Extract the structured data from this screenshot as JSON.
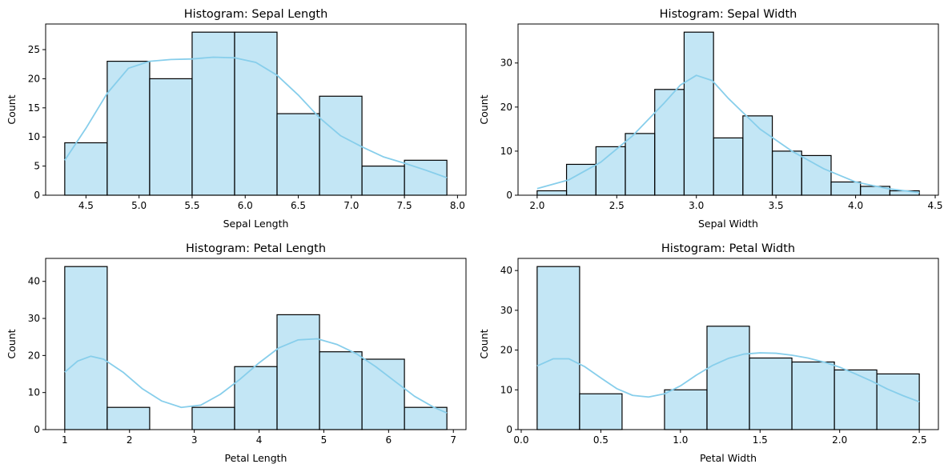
{
  "colors": {
    "bar_fill": "#87CEEB",
    "bar_edge": "#000000",
    "kde_line": "#87CEEB"
  },
  "chart_data": [
    {
      "type": "bar",
      "title": "Histogram: Sepal Length",
      "xlabel": "Sepal Length",
      "ylabel": "Count",
      "xlim": [
        4.12,
        8.08
      ],
      "ylim": [
        0,
        29.4
      ],
      "xticks": [
        4.5,
        5.0,
        5.5,
        6.0,
        6.5,
        7.0,
        7.5,
        8.0
      ],
      "xtick_labels": [
        "4.5",
        "5.0",
        "5.5",
        "6.0",
        "6.5",
        "7.0",
        "7.5",
        "8.0"
      ],
      "yticks": [
        0,
        5,
        10,
        15,
        20,
        25
      ],
      "ytick_labels": [
        "0",
        "5",
        "10",
        "15",
        "20",
        "25"
      ],
      "bin_edges": [
        4.3,
        4.7,
        5.1,
        5.5,
        5.9,
        6.3,
        6.7,
        7.1,
        7.5,
        7.9
      ],
      "counts": [
        9,
        23,
        20,
        28,
        28,
        14,
        17,
        5,
        6
      ],
      "kde": {
        "x": [
          4.3,
          4.5,
          4.7,
          4.9,
          5.1,
          5.3,
          5.5,
          5.7,
          5.9,
          6.1,
          6.3,
          6.5,
          6.7,
          6.9,
          7.1,
          7.3,
          7.5,
          7.7,
          7.9
        ],
        "y": [
          6,
          11.5,
          17.5,
          21.8,
          23,
          23.3,
          23.4,
          23.7,
          23.6,
          22.8,
          20.6,
          17.2,
          13.3,
          10.2,
          8.3,
          6.6,
          5.5,
          4.3,
          3
        ]
      },
      "grid": false,
      "legend": "none"
    },
    {
      "type": "bar",
      "title": "Histogram: Sepal Width",
      "xlabel": "Sepal Width",
      "ylabel": "Count",
      "xlim": [
        1.88,
        4.52
      ],
      "ylim": [
        0,
        38.85
      ],
      "xticks": [
        2.0,
        2.5,
        3.0,
        3.5,
        4.0,
        4.5
      ],
      "xtick_labels": [
        "2.0",
        "2.5",
        "3.0",
        "3.5",
        "4.0",
        "4.5"
      ],
      "yticks": [
        0,
        10,
        20,
        30
      ],
      "ytick_labels": [
        "0",
        "10",
        "20",
        "30"
      ],
      "bin_edges": [
        2.0,
        2.1846,
        2.3692,
        2.5538,
        2.7385,
        2.9231,
        3.1077,
        3.2923,
        3.4769,
        3.6615,
        3.8462,
        4.0308,
        4.2154,
        4.4
      ],
      "counts": [
        1,
        7,
        11,
        14,
        24,
        37,
        13,
        18,
        10,
        9,
        3,
        2,
        1
      ],
      "kde": {
        "x": [
          2.0,
          2.2,
          2.4,
          2.6,
          2.8,
          2.9,
          3.0,
          3.1,
          3.2,
          3.4,
          3.6,
          3.8,
          4.0,
          4.2,
          4.4
        ],
        "y": [
          1.5,
          3.5,
          7.5,
          13.5,
          21,
          25,
          27.2,
          26,
          22,
          15,
          10,
          6,
          3,
          1.5,
          0.6
        ]
      },
      "grid": false,
      "legend": "none"
    },
    {
      "type": "bar",
      "title": "Histogram: Petal Length",
      "xlabel": "Petal Length",
      "ylabel": "Count",
      "xlim": [
        0.705,
        7.195
      ],
      "ylim": [
        0,
        46.2
      ],
      "xticks": [
        1,
        2,
        3,
        4,
        5,
        6,
        7
      ],
      "xtick_labels": [
        "1",
        "2",
        "3",
        "4",
        "5",
        "6",
        "7"
      ],
      "yticks": [
        0,
        10,
        20,
        30,
        40
      ],
      "ytick_labels": [
        "0",
        "10",
        "20",
        "30",
        "40"
      ],
      "bin_edges": [
        1.0,
        1.6556,
        2.3111,
        2.9667,
        3.6222,
        4.2778,
        4.9333,
        5.5889,
        6.2444,
        6.9
      ],
      "counts": [
        44,
        6,
        0,
        6,
        17,
        31,
        21,
        19,
        6
      ],
      "kde": {
        "x": [
          1.0,
          1.2,
          1.4,
          1.6,
          1.9,
          2.2,
          2.5,
          2.8,
          3.1,
          3.4,
          3.7,
          4.0,
          4.3,
          4.6,
          4.9,
          5.2,
          5.5,
          5.8,
          6.1,
          6.4,
          6.7,
          6.9
        ],
        "y": [
          15.5,
          18.5,
          19.8,
          19,
          15.5,
          11,
          7.7,
          6,
          6.6,
          9.5,
          13.5,
          18,
          22,
          24.2,
          24.5,
          23,
          20.5,
          17,
          13,
          9,
          6,
          4.5
        ]
      },
      "grid": false,
      "legend": "none"
    },
    {
      "type": "bar",
      "title": "Histogram: Petal Width",
      "xlabel": "Petal Width",
      "ylabel": "Count",
      "xlim": [
        -0.02,
        2.62
      ],
      "ylim": [
        0,
        43.05
      ],
      "xticks": [
        0.0,
        0.5,
        1.0,
        1.5,
        2.0,
        2.5
      ],
      "xtick_labels": [
        "0.0",
        "0.5",
        "1.0",
        "1.5",
        "2.0",
        "2.5"
      ],
      "yticks": [
        0,
        10,
        20,
        30,
        40
      ],
      "ytick_labels": [
        "0",
        "10",
        "20",
        "30",
        "40"
      ],
      "bin_edges": [
        0.1,
        0.3667,
        0.6333,
        0.9,
        1.1667,
        1.4333,
        1.7,
        1.9667,
        2.2333,
        2.5
      ],
      "counts": [
        41,
        9,
        0,
        10,
        26,
        18,
        17,
        15,
        14
      ],
      "kde": {
        "x": [
          0.1,
          0.2,
          0.3,
          0.4,
          0.5,
          0.6,
          0.7,
          0.8,
          0.9,
          1.0,
          1.1,
          1.2,
          1.3,
          1.4,
          1.5,
          1.6,
          1.7,
          1.8,
          1.9,
          2.0,
          2.1,
          2.2,
          2.3,
          2.4,
          2.5
        ],
        "y": [
          16,
          17.8,
          17.8,
          15.8,
          13,
          10.3,
          8.6,
          8.2,
          9,
          11,
          13.7,
          16.1,
          17.9,
          19,
          19.3,
          19.2,
          18.7,
          18,
          17,
          15.7,
          14,
          12.2,
          10.2,
          8.5,
          7
        ]
      },
      "grid": false,
      "legend": "none"
    }
  ]
}
